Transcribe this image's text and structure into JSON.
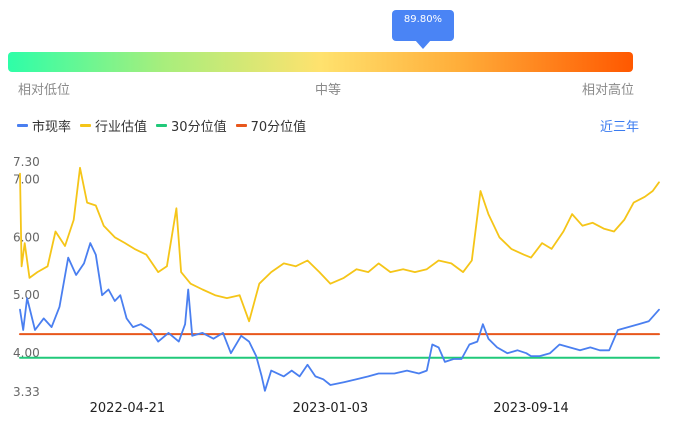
{
  "gauge": {
    "percentile_label": "89.80%",
    "percentile": 89.8,
    "low_label": "相对低位",
    "mid_label": "中等",
    "high_label": "相对高位"
  },
  "period": {
    "label": "近三年"
  },
  "colors": {
    "pe": "#4a7ff0",
    "industry": "#f5c518",
    "p30": "#21c97a",
    "p70": "#e8571c",
    "tooltip": "#4a84f5"
  },
  "chart_data": {
    "type": "line",
    "x_tick_labels": [
      "2022-04-21",
      "2023-01-03",
      "2023-09-14"
    ],
    "x_ticks": [
      "2022-04-21",
      "2023-01-03",
      "2023-09-14"
    ],
    "x_range": [
      "2021-12-06",
      "2024-02-23"
    ],
    "y_tick_labels": [
      "7.30",
      "7.00",
      "6.00",
      "5.00",
      "4.00",
      "3.33"
    ],
    "y_ticks": [
      7.3,
      7.0,
      6.0,
      5.0,
      4.0,
      3.33
    ],
    "ylim": [
      3.33,
      7.3
    ],
    "grid": false,
    "legend_position": "top-left",
    "series": [
      {
        "name": "市现率",
        "color": "#4a7ff0",
        "points": [
          [
            "2021-12-06",
            4.75
          ],
          [
            "2021-12-10",
            4.4
          ],
          [
            "2021-12-15",
            4.95
          ],
          [
            "2021-12-25",
            4.4
          ],
          [
            "2022-01-05",
            4.6
          ],
          [
            "2022-01-15",
            4.45
          ],
          [
            "2022-01-25",
            4.8
          ],
          [
            "2022-02-05",
            5.65
          ],
          [
            "2022-02-15",
            5.35
          ],
          [
            "2022-02-25",
            5.55
          ],
          [
            "2022-03-05",
            5.9
          ],
          [
            "2022-03-12",
            5.7
          ],
          [
            "2022-03-20",
            5.0
          ],
          [
            "2022-03-28",
            5.1
          ],
          [
            "2022-04-05",
            4.9
          ],
          [
            "2022-04-12",
            5.0
          ],
          [
            "2022-04-20",
            4.6
          ],
          [
            "2022-04-28",
            4.45
          ],
          [
            "2022-05-08",
            4.5
          ],
          [
            "2022-05-20",
            4.4
          ],
          [
            "2022-05-30",
            4.2
          ],
          [
            "2022-06-12",
            4.35
          ],
          [
            "2022-06-25",
            4.2
          ],
          [
            "2022-07-03",
            4.5
          ],
          [
            "2022-07-07",
            5.1
          ],
          [
            "2022-07-12",
            4.3
          ],
          [
            "2022-07-25",
            4.35
          ],
          [
            "2022-08-08",
            4.25
          ],
          [
            "2022-08-20",
            4.35
          ],
          [
            "2022-08-30",
            4.0
          ],
          [
            "2022-09-12",
            4.3
          ],
          [
            "2022-09-22",
            4.2
          ],
          [
            "2022-10-01",
            3.95
          ],
          [
            "2022-10-08",
            3.6
          ],
          [
            "2022-10-12",
            3.35
          ],
          [
            "2022-10-20",
            3.7
          ],
          [
            "2022-11-05",
            3.6
          ],
          [
            "2022-11-15",
            3.7
          ],
          [
            "2022-11-25",
            3.6
          ],
          [
            "2022-12-05",
            3.8
          ],
          [
            "2022-12-15",
            3.6
          ],
          [
            "2022-12-25",
            3.55
          ],
          [
            "2023-01-03",
            3.45
          ],
          [
            "2023-01-20",
            3.5
          ],
          [
            "2023-02-05",
            3.55
          ],
          [
            "2023-02-20",
            3.6
          ],
          [
            "2023-03-05",
            3.65
          ],
          [
            "2023-03-25",
            3.65
          ],
          [
            "2023-04-10",
            3.7
          ],
          [
            "2023-04-25",
            3.65
          ],
          [
            "2023-05-05",
            3.7
          ],
          [
            "2023-05-12",
            4.15
          ],
          [
            "2023-05-20",
            4.1
          ],
          [
            "2023-05-28",
            3.85
          ],
          [
            "2023-06-08",
            3.9
          ],
          [
            "2023-06-18",
            3.9
          ],
          [
            "2023-06-28",
            4.15
          ],
          [
            "2023-07-08",
            4.2
          ],
          [
            "2023-07-15",
            4.5
          ],
          [
            "2023-07-22",
            4.25
          ],
          [
            "2023-08-02",
            4.1
          ],
          [
            "2023-08-15",
            4.0
          ],
          [
            "2023-08-28",
            4.05
          ],
          [
            "2023-09-08",
            4.0
          ],
          [
            "2023-09-14",
            3.95
          ],
          [
            "2023-09-25",
            3.95
          ],
          [
            "2023-10-08",
            4.0
          ],
          [
            "2023-10-20",
            4.15
          ],
          [
            "2023-11-02",
            4.1
          ],
          [
            "2023-11-15",
            4.05
          ],
          [
            "2023-11-28",
            4.1
          ],
          [
            "2023-12-10",
            4.05
          ],
          [
            "2023-12-22",
            4.05
          ],
          [
            "2024-01-02",
            4.4
          ],
          [
            "2024-01-15",
            4.45
          ],
          [
            "2024-01-28",
            4.5
          ],
          [
            "2024-02-10",
            4.55
          ],
          [
            "2024-02-23",
            4.75
          ]
        ]
      },
      {
        "name": "行业估值",
        "color": "#f5c518",
        "points": [
          [
            "2021-12-06",
            7.1
          ],
          [
            "2021-12-08",
            5.5
          ],
          [
            "2021-12-12",
            5.9
          ],
          [
            "2021-12-18",
            5.3
          ],
          [
            "2021-12-28",
            5.4
          ],
          [
            "2022-01-10",
            5.5
          ],
          [
            "2022-01-20",
            6.1
          ],
          [
            "2022-02-01",
            5.85
          ],
          [
            "2022-02-12",
            6.3
          ],
          [
            "2022-02-20",
            7.2
          ],
          [
            "2022-03-01",
            6.6
          ],
          [
            "2022-03-12",
            6.55
          ],
          [
            "2022-03-22",
            6.2
          ],
          [
            "2022-04-05",
            6.0
          ],
          [
            "2022-04-18",
            5.9
          ],
          [
            "2022-04-30",
            5.8
          ],
          [
            "2022-05-15",
            5.7
          ],
          [
            "2022-05-30",
            5.4
          ],
          [
            "2022-06-10",
            5.5
          ],
          [
            "2022-06-22",
            6.5
          ],
          [
            "2022-06-28",
            5.4
          ],
          [
            "2022-07-10",
            5.2
          ],
          [
            "2022-07-25",
            5.1
          ],
          [
            "2022-08-10",
            5.0
          ],
          [
            "2022-08-25",
            4.95
          ],
          [
            "2022-09-10",
            5.0
          ],
          [
            "2022-09-22",
            4.55
          ],
          [
            "2022-10-05",
            5.2
          ],
          [
            "2022-10-20",
            5.4
          ],
          [
            "2022-11-05",
            5.55
          ],
          [
            "2022-11-20",
            5.5
          ],
          [
            "2022-12-05",
            5.6
          ],
          [
            "2022-12-20",
            5.4
          ],
          [
            "2023-01-03",
            5.2
          ],
          [
            "2023-01-20",
            5.3
          ],
          [
            "2023-02-05",
            5.45
          ],
          [
            "2023-02-20",
            5.4
          ],
          [
            "2023-03-05",
            5.55
          ],
          [
            "2023-03-20",
            5.4
          ],
          [
            "2023-04-05",
            5.45
          ],
          [
            "2023-04-20",
            5.4
          ],
          [
            "2023-05-05",
            5.45
          ],
          [
            "2023-05-20",
            5.6
          ],
          [
            "2023-06-05",
            5.55
          ],
          [
            "2023-06-20",
            5.4
          ],
          [
            "2023-07-01",
            5.6
          ],
          [
            "2023-07-12",
            6.8
          ],
          [
            "2023-07-22",
            6.4
          ],
          [
            "2023-08-05",
            6.0
          ],
          [
            "2023-08-20",
            5.8
          ],
          [
            "2023-09-05",
            5.7
          ],
          [
            "2023-09-14",
            5.65
          ],
          [
            "2023-09-28",
            5.9
          ],
          [
            "2023-10-10",
            5.8
          ],
          [
            "2023-10-25",
            6.1
          ],
          [
            "2023-11-05",
            6.4
          ],
          [
            "2023-11-18",
            6.2
          ],
          [
            "2023-12-01",
            6.25
          ],
          [
            "2023-12-15",
            6.15
          ],
          [
            "2023-12-28",
            6.1
          ],
          [
            "2024-01-10",
            6.3
          ],
          [
            "2024-01-22",
            6.6
          ],
          [
            "2024-02-05",
            6.7
          ],
          [
            "2024-02-15",
            6.8
          ],
          [
            "2024-02-23",
            6.95
          ]
        ]
      },
      {
        "name": "30分位值",
        "color": "#21c97a",
        "points": [
          [
            "2021-12-06",
            3.92
          ],
          [
            "2024-02-23",
            3.92
          ]
        ]
      },
      {
        "name": "70分位值",
        "color": "#e8571c",
        "points": [
          [
            "2021-12-06",
            4.33
          ],
          [
            "2024-02-23",
            4.33
          ]
        ]
      }
    ]
  }
}
